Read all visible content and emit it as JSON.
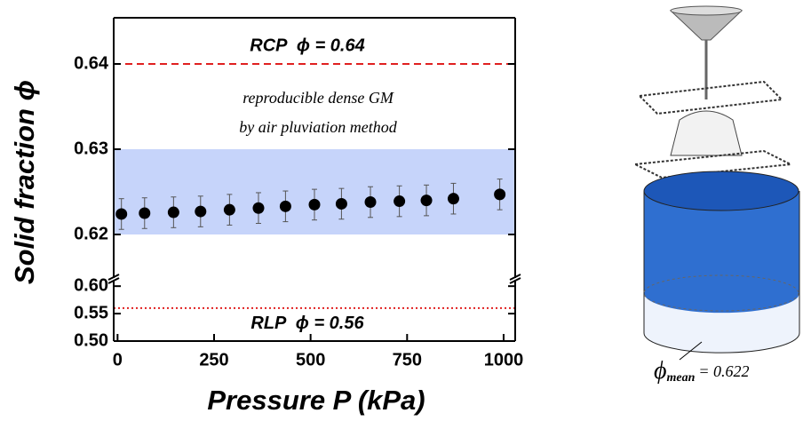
{
  "chart_data": {
    "type": "scatter",
    "xlabel": "Pressure P (kPa)",
    "ylabel": "Solid fraction ϕ",
    "x": [
      10,
      70,
      145,
      215,
      290,
      365,
      435,
      510,
      580,
      655,
      730,
      800,
      870,
      990
    ],
    "series": [
      {
        "color": "#000000",
        "values": [
          0.6224,
          0.6225,
          0.6226,
          0.6227,
          0.6229,
          0.6231,
          0.6233,
          0.6235,
          0.6236,
          0.6238,
          0.6239,
          0.624,
          0.6242,
          0.6247
        ],
        "errors": [
          0.0018,
          0.0018,
          0.0018,
          0.0018,
          0.0018,
          0.0018,
          0.0018,
          0.0018,
          0.0018,
          0.0018,
          0.0018,
          0.0018,
          0.0018,
          0.0018
        ]
      }
    ],
    "xlim": [
      -10,
      1030
    ],
    "xticks": [
      0,
      250,
      500,
      750,
      1000
    ],
    "ylim": [
      0.615,
      0.645
    ],
    "yticks": [
      0.62,
      0.63,
      0.64
    ],
    "ylim_lower": [
      0.5,
      0.61
    ],
    "yticks_lower": [
      {
        "value": 0.5,
        "label": "0.50"
      },
      {
        "value": 0.55,
        "label": "0.55"
      },
      {
        "value": 0.6,
        "label": "0.60"
      }
    ],
    "band": [
      0.62,
      0.63
    ],
    "band_color": "#c6d4fa",
    "reference_lines": [
      {
        "value": 0.64,
        "label": "RCP  ϕ = 0.64",
        "color": "#e02020",
        "dash": "8,5"
      },
      {
        "value": 0.56,
        "label": "RLP  ϕ = 0.56",
        "color": "#e02020",
        "dash": "2,3"
      }
    ],
    "annotations": [
      "reproducible dense GM",
      "by air pluviation method"
    ]
  },
  "diagram": {
    "label_symbol": "ϕ",
    "label_subscript": "mean",
    "label_value": "= 0.622"
  }
}
